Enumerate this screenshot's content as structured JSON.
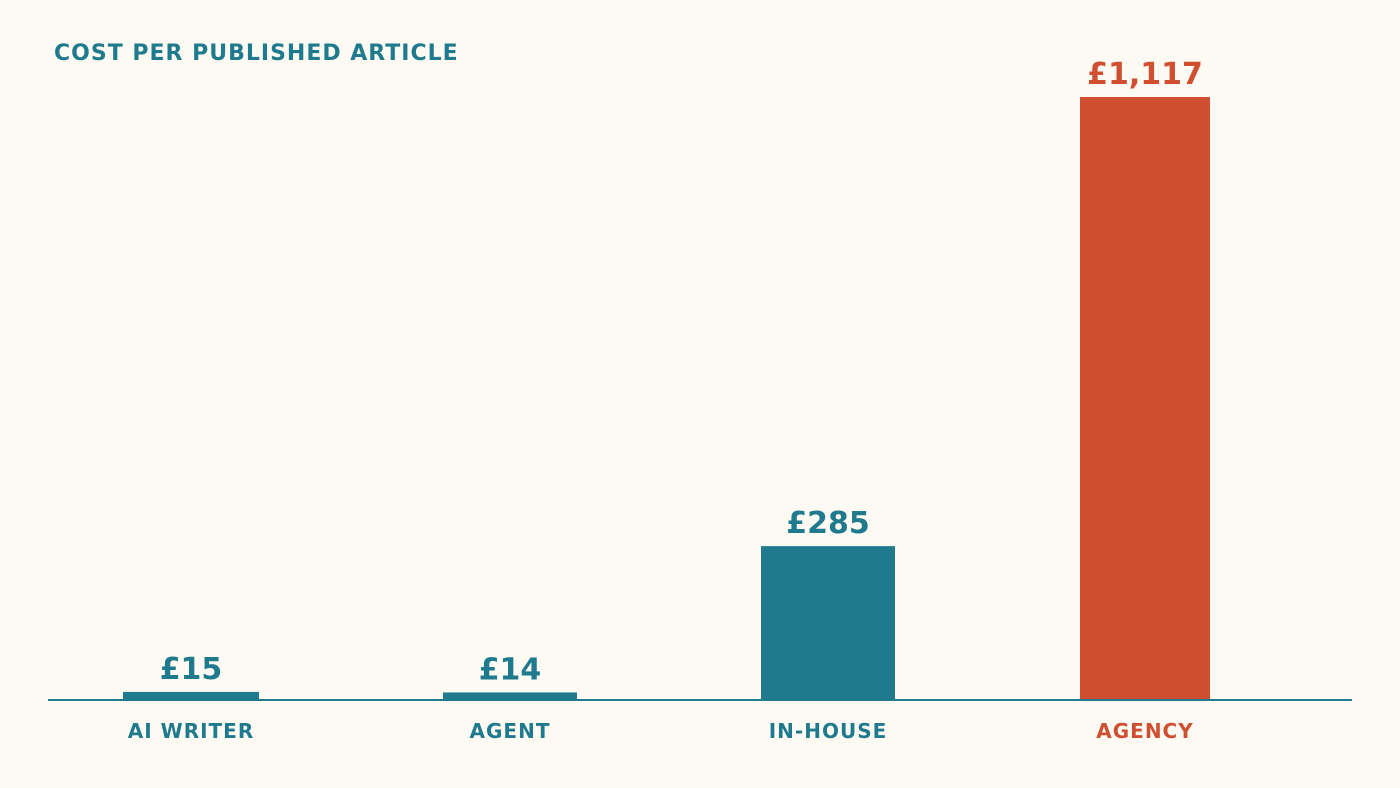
{
  "colors": {
    "primary": "#1e7a8c",
    "highlight": "#d04f30",
    "background": "#fcfaf3"
  },
  "chart_data": {
    "type": "bar",
    "title": "COST PER PUBLISHED ARTICLE",
    "xlabel": "",
    "ylabel": "",
    "ylim": [
      0,
      1117
    ],
    "grid": false,
    "legend": "none",
    "categories": [
      "AI WRITER",
      "AGENT",
      "IN-HOUSE",
      "AGENCY"
    ],
    "values": [
      15,
      14,
      285,
      1117
    ],
    "value_labels": [
      "£15",
      "£14",
      "£285",
      "£1,117"
    ],
    "highlight_category": "AGENCY"
  }
}
